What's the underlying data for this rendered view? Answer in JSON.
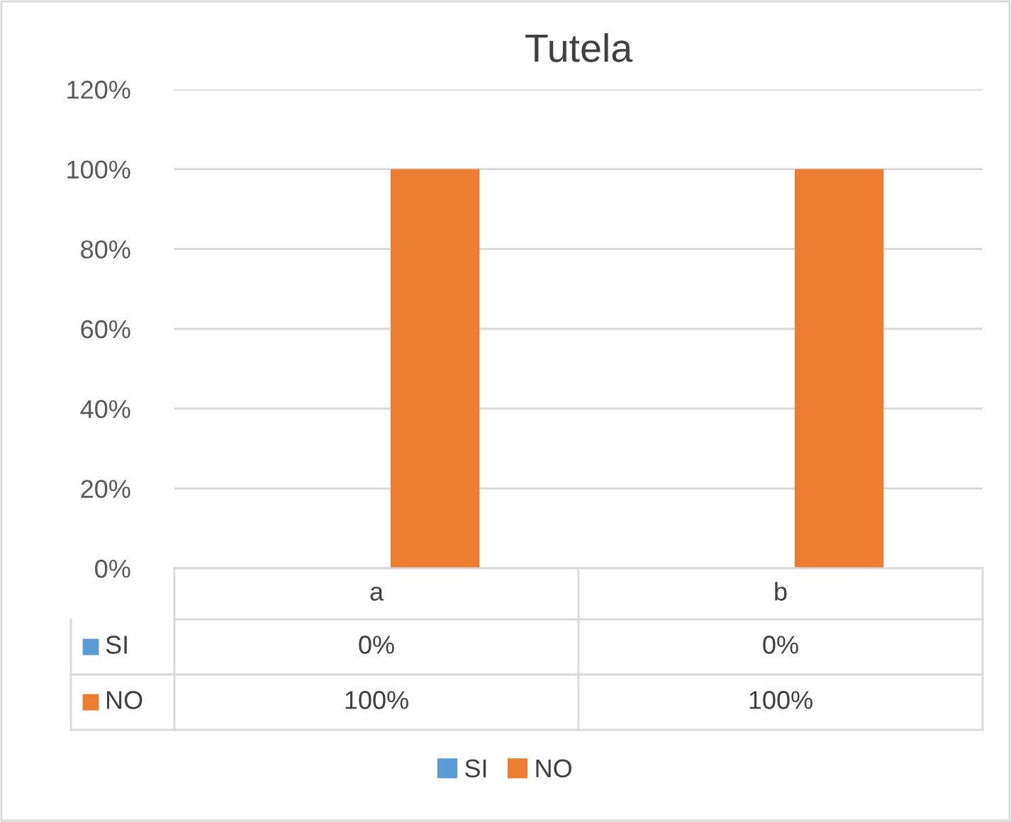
{
  "chart_data": {
    "type": "bar",
    "title": "Tutela",
    "categories": [
      "a",
      "b"
    ],
    "series": [
      {
        "name": "SI",
        "color": "#5b9bd5",
        "values": [
          0,
          0
        ],
        "value_labels": [
          "0%",
          "0%"
        ]
      },
      {
        "name": "NO",
        "color": "#ed7d31",
        "values": [
          100,
          100
        ],
        "value_labels": [
          "100%",
          "100%"
        ]
      }
    ],
    "ylim": [
      0,
      120
    ],
    "yticks": [
      {
        "value": 0,
        "label": "0%"
      },
      {
        "value": 20,
        "label": "20%"
      },
      {
        "value": 40,
        "label": "40%"
      },
      {
        "value": 60,
        "label": "60%"
      },
      {
        "value": 80,
        "label": "80%"
      },
      {
        "value": 100,
        "label": "100%"
      },
      {
        "value": 120,
        "label": "120%"
      }
    ],
    "grid": "y",
    "legend": "bottom"
  }
}
